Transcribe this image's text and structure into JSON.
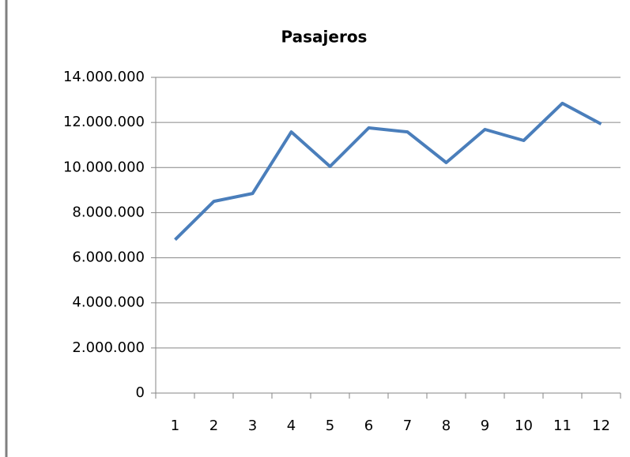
{
  "chart_data": {
    "type": "line",
    "title": "Pasajeros",
    "categories": [
      "1",
      "2",
      "3",
      "4",
      "5",
      "6",
      "7",
      "8",
      "9",
      "10",
      "11",
      "12"
    ],
    "series": [
      {
        "name": "Pasajeros",
        "color": "#4a7ebb",
        "values": [
          6800000,
          8500000,
          8850000,
          11580000,
          10050000,
          11760000,
          11580000,
          10220000,
          11690000,
          11200000,
          12850000,
          11930000
        ]
      }
    ],
    "ylim": [
      0,
      14000000
    ],
    "yticks": [
      0,
      {
        "value": 2000000,
        "label": "2.000.000"
      },
      {
        "value": 4000000,
        "label": "4.000.000"
      },
      {
        "value": 6000000,
        "label": "6.000.000"
      },
      {
        "value": 8000000,
        "label": "8.000.000"
      },
      {
        "value": 10000000,
        "label": "10.000.000"
      },
      {
        "value": 12000000,
        "label": "12.000.000"
      },
      {
        "value": 14000000,
        "label": "14.000.000"
      }
    ],
    "grid": true
  }
}
